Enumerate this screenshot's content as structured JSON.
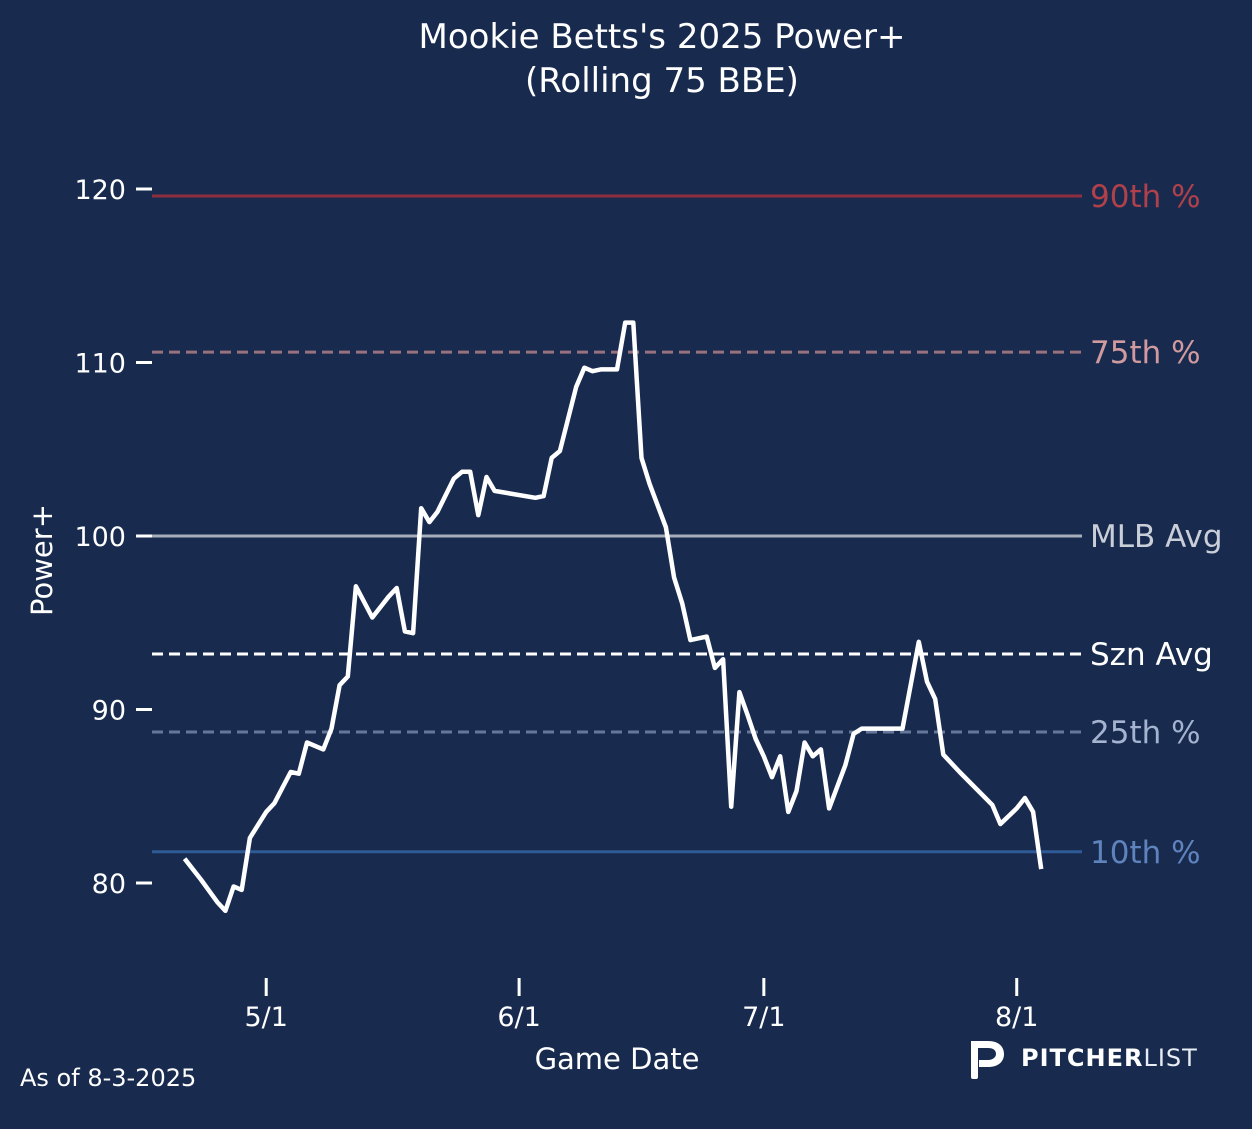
{
  "chart_data": {
    "type": "line",
    "title_line1": "Mookie Betts's 2025 Power+",
    "title_line2": "(Rolling 75 BBE)",
    "xlabel": "Game Date",
    "ylabel": "Power+",
    "x_range": [
      "2025-04-17",
      "2025-08-09"
    ],
    "ylim": [
      75,
      122
    ],
    "y_ticks": [
      80,
      90,
      100,
      110,
      120
    ],
    "x_ticks": [
      {
        "date": "2025-05-01",
        "label": "5/1"
      },
      {
        "date": "2025-06-01",
        "label": "6/1"
      },
      {
        "date": "2025-07-01",
        "label": "7/1"
      },
      {
        "date": "2025-08-01",
        "label": "8/1"
      }
    ],
    "reference_lines": [
      {
        "key": "p90",
        "label": "90th %",
        "value": 119.6,
        "color": "#8e2f3f",
        "label_color": "#b0404a",
        "dashed": false
      },
      {
        "key": "p75",
        "label": "75th %",
        "value": 110.6,
        "color": "#98727e",
        "label_color": "#d09a9e",
        "dashed": true
      },
      {
        "key": "mlb",
        "label": "MLB Avg",
        "value": 100.0,
        "color": "#a6adbb",
        "label_color": "#c9ced8",
        "dashed": false
      },
      {
        "key": "szn",
        "label": "Szn Avg",
        "value": 93.2,
        "color": "#ffffff",
        "label_color": "#ffffff",
        "dashed": true
      },
      {
        "key": "p25",
        "label": "25th %",
        "value": 88.7,
        "color": "#66789a",
        "label_color": "#a4b3cf",
        "dashed": true
      },
      {
        "key": "p10",
        "label": "10th %",
        "value": 81.8,
        "color": "#2e5b96",
        "label_color": "#5f83bd",
        "dashed": false
      }
    ],
    "series": [
      {
        "color": "#ffffff",
        "points": [
          [
            "2025-04-21",
            81.4
          ],
          [
            "2025-04-23",
            80.2
          ],
          [
            "2025-04-25",
            78.9
          ],
          [
            "2025-04-26",
            78.4
          ],
          [
            "2025-04-27",
            79.8
          ],
          [
            "2025-04-28",
            79.6
          ],
          [
            "2025-04-29",
            82.6
          ],
          [
            "2025-05-01",
            84.1
          ],
          [
            "2025-05-02",
            84.6
          ],
          [
            "2025-05-03",
            85.5
          ],
          [
            "2025-05-04",
            86.4
          ],
          [
            "2025-05-05",
            86.3
          ],
          [
            "2025-05-06",
            88.1
          ],
          [
            "2025-05-08",
            87.7
          ],
          [
            "2025-05-09",
            88.9
          ],
          [
            "2025-05-10",
            91.4
          ],
          [
            "2025-05-11",
            91.9
          ],
          [
            "2025-05-12",
            97.1
          ],
          [
            "2025-05-14",
            95.3
          ],
          [
            "2025-05-16",
            96.5
          ],
          [
            "2025-05-17",
            97.0
          ],
          [
            "2025-05-18",
            94.5
          ],
          [
            "2025-05-19",
            94.4
          ],
          [
            "2025-05-20",
            101.6
          ],
          [
            "2025-05-21",
            100.8
          ],
          [
            "2025-05-22",
            101.4
          ],
          [
            "2025-05-24",
            103.3
          ],
          [
            "2025-05-25",
            103.7
          ],
          [
            "2025-05-26",
            103.7
          ],
          [
            "2025-05-27",
            101.2
          ],
          [
            "2025-05-28",
            103.4
          ],
          [
            "2025-05-29",
            102.6
          ],
          [
            "2025-06-03",
            102.2
          ],
          [
            "2025-06-04",
            102.3
          ],
          [
            "2025-06-05",
            104.5
          ],
          [
            "2025-06-06",
            104.9
          ],
          [
            "2025-06-08",
            108.6
          ],
          [
            "2025-06-09",
            109.7
          ],
          [
            "2025-06-10",
            109.5
          ],
          [
            "2025-06-11",
            109.6
          ],
          [
            "2025-06-13",
            109.6
          ],
          [
            "2025-06-14",
            112.3
          ],
          [
            "2025-06-15",
            112.3
          ],
          [
            "2025-06-16",
            104.5
          ],
          [
            "2025-06-17",
            103.0
          ],
          [
            "2025-06-19",
            100.5
          ],
          [
            "2025-06-20",
            97.6
          ],
          [
            "2025-06-21",
            96.1
          ],
          [
            "2025-06-22",
            94.0
          ],
          [
            "2025-06-24",
            94.2
          ],
          [
            "2025-06-25",
            92.4
          ],
          [
            "2025-06-26",
            92.9
          ],
          [
            "2025-06-27",
            84.4
          ],
          [
            "2025-06-28",
            91.0
          ],
          [
            "2025-06-29",
            89.7
          ],
          [
            "2025-06-30",
            88.3
          ],
          [
            "2025-07-01",
            87.3
          ],
          [
            "2025-07-02",
            86.1
          ],
          [
            "2025-07-03",
            87.3
          ],
          [
            "2025-07-04",
            84.1
          ],
          [
            "2025-07-05",
            85.3
          ],
          [
            "2025-07-06",
            88.1
          ],
          [
            "2025-07-07",
            87.3
          ],
          [
            "2025-07-08",
            87.7
          ],
          [
            "2025-07-09",
            84.3
          ],
          [
            "2025-07-11",
            86.8
          ],
          [
            "2025-07-12",
            88.6
          ],
          [
            "2025-07-13",
            88.9
          ],
          [
            "2025-07-18",
            88.9
          ],
          [
            "2025-07-20",
            93.9
          ],
          [
            "2025-07-21",
            91.6
          ],
          [
            "2025-07-22",
            90.6
          ],
          [
            "2025-07-23",
            87.4
          ],
          [
            "2025-07-25",
            86.4
          ],
          [
            "2025-07-29",
            84.5
          ],
          [
            "2025-07-30",
            83.4
          ],
          [
            "2025-08-01",
            84.3
          ],
          [
            "2025-08-02",
            84.9
          ],
          [
            "2025-08-03",
            84.1
          ],
          [
            "2025-08-04",
            80.8
          ]
        ]
      }
    ]
  },
  "footer": {
    "as_of": "As of 8-3-2025"
  },
  "logo": {
    "brand_bold": "PITCHER",
    "brand_light": "LIST"
  },
  "colors": {
    "background": "#182b4f",
    "text": "#ffffff"
  }
}
